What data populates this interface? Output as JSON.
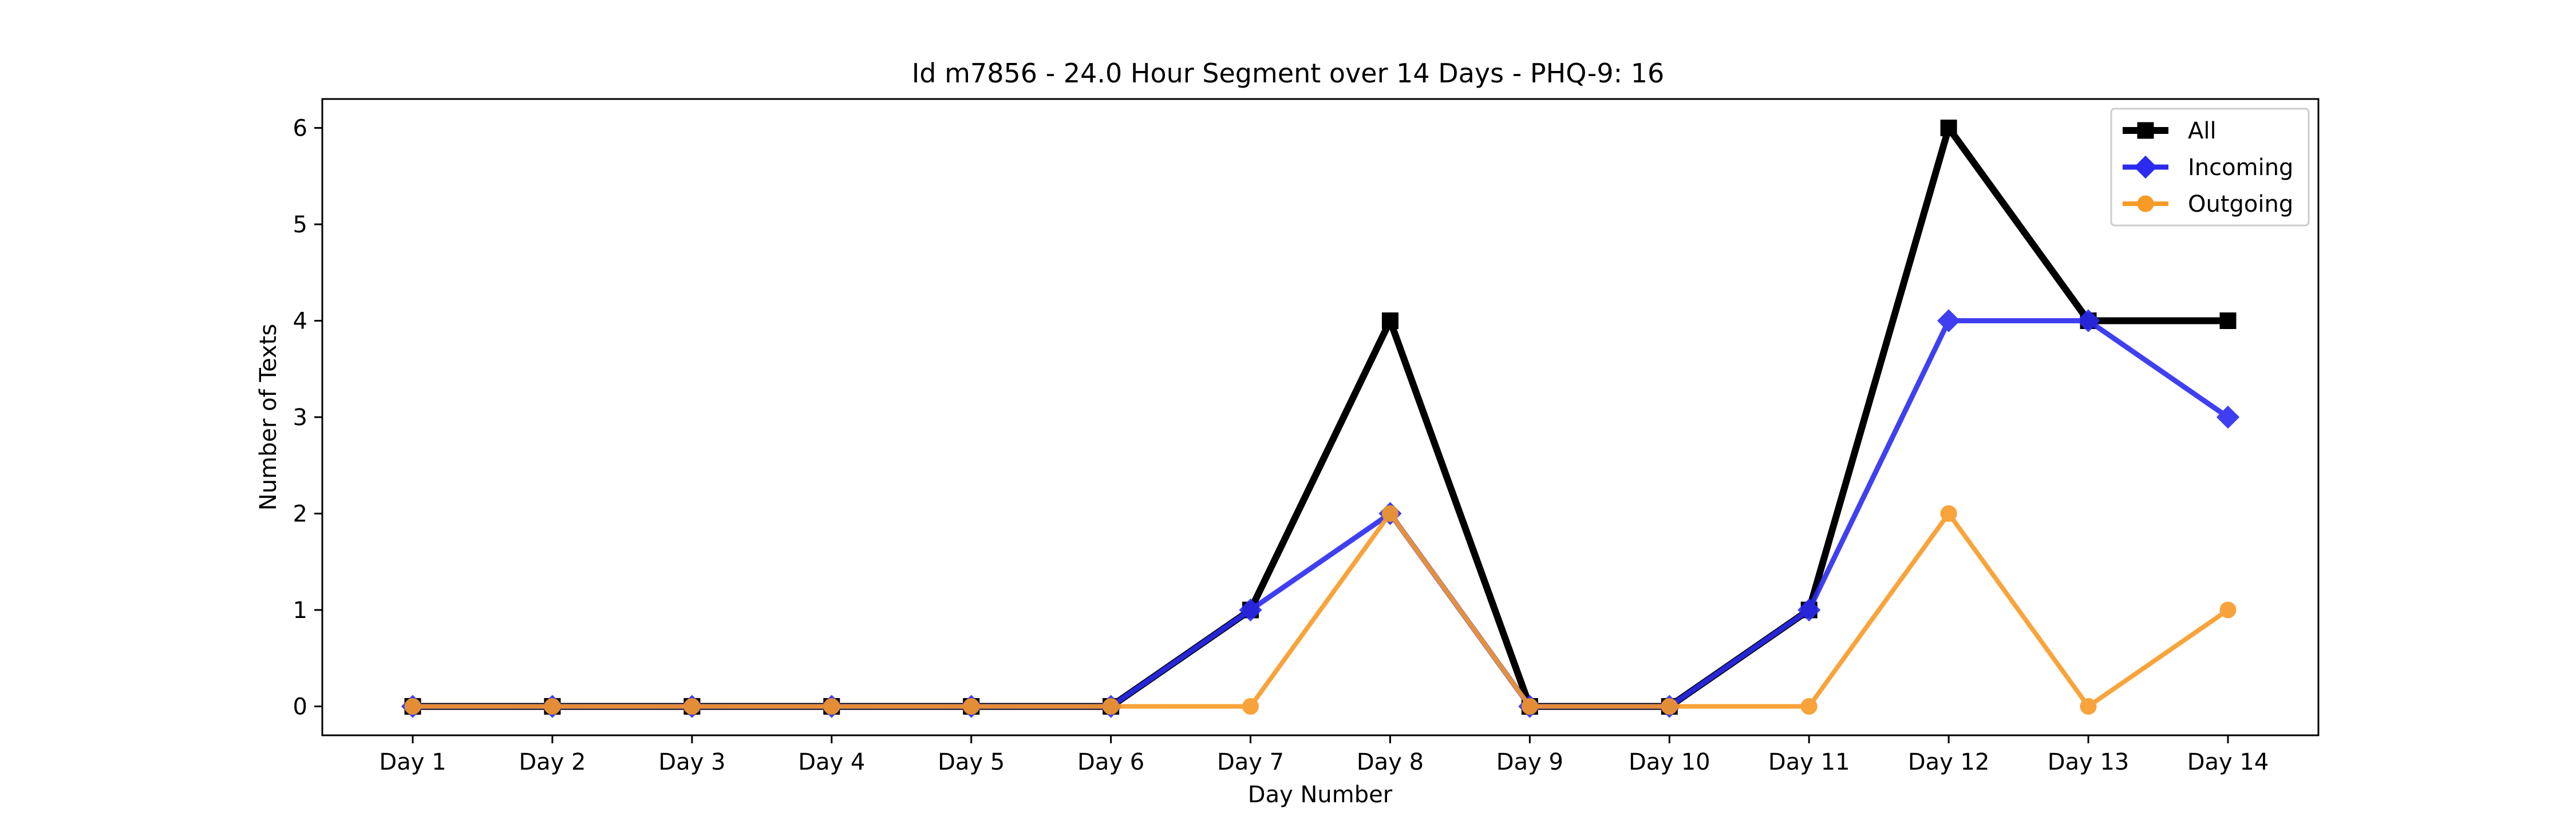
{
  "chart_data": {
    "type": "line",
    "title": "Id m7856 - 24.0 Hour Segment over 14 Days - PHQ-9: 16",
    "xlabel": "Day Number",
    "ylabel": "Number of Texts",
    "categories": [
      "Day 1",
      "Day 2",
      "Day 3",
      "Day 4",
      "Day 5",
      "Day 6",
      "Day 7",
      "Day 8",
      "Day 9",
      "Day 10",
      "Day 11",
      "Day 12",
      "Day 13",
      "Day 14"
    ],
    "ylim": [
      -0.3,
      6.3
    ],
    "yticks": [
      0,
      1,
      2,
      3,
      4,
      5,
      6
    ],
    "grid": false,
    "legend_position": "top-right",
    "series": [
      {
        "name": "All",
        "color": "#000000",
        "marker": "square",
        "values": [
          0,
          0,
          0,
          0,
          0,
          0,
          1,
          4,
          0,
          0,
          1,
          6,
          4,
          4
        ]
      },
      {
        "name": "Incoming",
        "color": "#2b2bf0",
        "marker": "diamond",
        "values": [
          0,
          0,
          0,
          0,
          0,
          0,
          1,
          2,
          0,
          0,
          1,
          4,
          4,
          3
        ]
      },
      {
        "name": "Outgoing",
        "color": "#f89a26",
        "marker": "circle",
        "values": [
          0,
          0,
          0,
          0,
          0,
          0,
          0,
          2,
          0,
          0,
          0,
          2,
          0,
          1
        ]
      }
    ]
  }
}
